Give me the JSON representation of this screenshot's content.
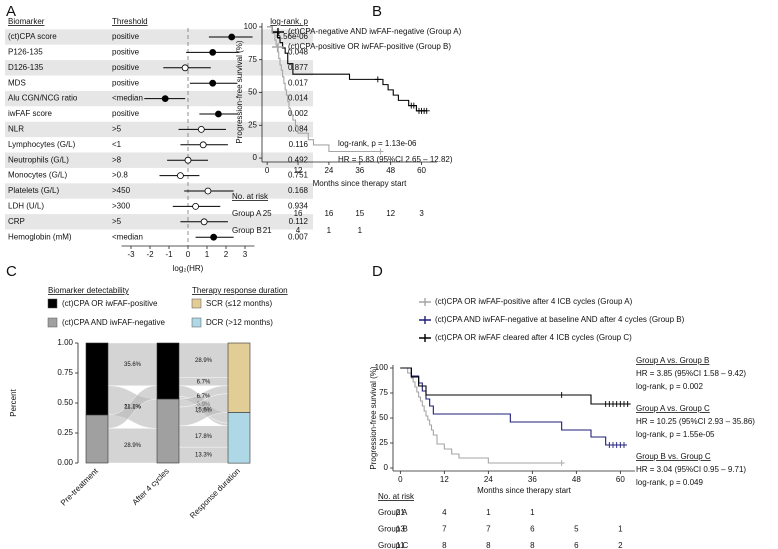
{
  "chart_data": [
    {
      "type": "forest",
      "panel": "A",
      "columns": [
        "Biomarker",
        "Threshold",
        "log-rank, p"
      ],
      "categories": [
        "(ct)CPA score",
        "P126-135",
        "D126-135",
        "MDS",
        "Alu CGN/NCG ratio",
        "iwFAF score",
        "NLR",
        "Lymphocytes (G/L)",
        "Neutrophils (G/L)",
        "Monocytes (G/L)",
        "Platelets (G/L)",
        "LDH (U/L)",
        "CRP",
        "Hemoglobin (mM)"
      ],
      "thresholds": [
        "positive",
        "positive",
        "positive",
        "positive",
        "<median",
        "positive",
        ">5",
        "<1",
        ">8",
        ">0.8",
        ">450",
        ">300",
        ">5",
        "<median"
      ],
      "p_values": [
        "6.56e-06",
        "0.048",
        "0.877",
        "0.017",
        "0.014",
        "0.002",
        "0.084",
        "0.116",
        "0.492",
        "0.751",
        "0.168",
        "0.934",
        "0.112",
        "0.007"
      ],
      "values": [
        2.3,
        1.3,
        -0.15,
        1.3,
        -1.2,
        1.6,
        0.7,
        0.8,
        0,
        -0.4,
        1.05,
        0.4,
        0.85,
        1.35
      ],
      "ci_low": [
        1.1,
        -0.1,
        -1.3,
        0.1,
        -2.3,
        0.6,
        -0.5,
        -0.4,
        -1.1,
        -1.5,
        -0.2,
        -0.8,
        -0.4,
        0.4
      ],
      "ci_high": [
        3.4,
        2.7,
        1.2,
        2.6,
        -0.15,
        2.6,
        2.0,
        2.1,
        1.05,
        0.6,
        2.4,
        1.7,
        2.1,
        2.4
      ],
      "filled": [
        true,
        true,
        false,
        true,
        true,
        true,
        false,
        false,
        false,
        false,
        false,
        false,
        false,
        true
      ],
      "xlim": [
        -3.5,
        3.5
      ],
      "xticks": [
        -3,
        -2,
        -1,
        0,
        1,
        2,
        3
      ],
      "xlabel": "log₂(HR)",
      "color": "#000000",
      "stripe_color": "#e6e6e6"
    },
    {
      "type": "survival",
      "panel": "B",
      "ylabel": "Progression-free survival (%)",
      "xlabel": "Months since therapy start",
      "xlim": [
        -2,
        66
      ],
      "ylim": [
        -3,
        103
      ],
      "xticks": [
        0,
        12,
        24,
        36,
        48,
        60
      ],
      "yticks": [
        0,
        25,
        50,
        75,
        100
      ],
      "series": [
        {
          "name": "(ct)CPA-negative AND iwFAF-negative (Group A)",
          "color": "#000000",
          "x": [
            0,
            2,
            4,
            5,
            6,
            7,
            8,
            10,
            32,
            45,
            47,
            49,
            51,
            55,
            58
          ],
          "values": [
            100,
            96,
            92,
            88,
            84,
            80,
            72,
            64,
            60,
            56,
            52,
            48,
            44,
            40,
            36
          ],
          "censored_x": [
            43,
            56,
            57,
            59,
            60,
            61,
            62
          ],
          "censored_values": [
            60,
            40,
            40,
            36,
            36,
            36,
            36
          ]
        },
        {
          "name": "(ct)CPA-positive OR iwFAF-positive (Group B)",
          "color": "#a6a6a6",
          "x": [
            0,
            2,
            3,
            3.5,
            4,
            4.5,
            5,
            5.5,
            6,
            6.5,
            7,
            7.5,
            8,
            8.5,
            9,
            10,
            11,
            12,
            16,
            18,
            24
          ],
          "values": [
            100,
            95,
            90,
            86,
            81,
            76,
            71,
            67,
            62,
            57,
            52,
            48,
            43,
            38,
            33,
            29,
            24,
            19,
            14,
            10,
            5
          ],
          "censored_x": [
            44
          ],
          "censored_values": [
            5
          ]
        }
      ],
      "annotations": [
        [
          "log-rank, p = 1.13e-06",
          "HR = 5.83 (95%CI 2.65 – 12.82)"
        ]
      ],
      "annotation_heading_underline": false,
      "risk_table": {
        "title": "No. at risk",
        "rows": [
          {
            "name": "Group A",
            "values": [
              25,
              16,
              16,
              15,
              12,
              3
            ]
          },
          {
            "name": "Group B",
            "values": [
              21,
              4,
              1,
              1
            ]
          }
        ]
      }
    },
    {
      "type": "alluvial",
      "panel": "C",
      "ylabel": "Percent",
      "ylim": [
        0,
        1
      ],
      "yticks": [
        {
          "value": 0,
          "label": "0.00"
        },
        {
          "value": 0.25,
          "label": "0.25"
        },
        {
          "value": 0.5,
          "label": "0.50"
        },
        {
          "value": 0.75,
          "label": "0.75"
        },
        {
          "value": 1,
          "label": "1.00"
        }
      ],
      "axes": [
        "Pre-treatment",
        "After 4 cycles",
        "Response duration"
      ],
      "legends": [
        {
          "title": "Biomarker detectability",
          "items": [
            {
              "name": "(ct)CPA OR iwFAF-positive",
              "color": "#000000"
            },
            {
              "name": "(ct)CPA AND iwFAF-negative",
              "color": "#a0a0a0"
            }
          ]
        },
        {
          "title": "Therapy response duration",
          "items": [
            {
              "name": "SCR (≤12 months)",
              "color": "#e3cd96"
            },
            {
              "name": "DCR (>12 months)",
              "color": "#aed8e6"
            }
          ]
        }
      ],
      "flow_color": "#b8b8b8",
      "flows": [
        [
          [
            [
              0.356
            ],
            [
              0.244
            ]
          ],
          [
            [
              0.111
            ],
            [
              0.289
            ]
          ]
        ],
        [
          [
            [
              0.289,
              0.067
            ],
            [
              0.089,
              0.022
            ]
          ],
          [
            [
              0.067,
              0.156
            ],
            [
              0.178,
              0.133
            ]
          ]
        ]
      ],
      "value_labels": [
        [
          [
            [
              "35.6%"
            ],
            [
              "24.4%"
            ]
          ],
          [
            [
              "11.1%"
            ],
            [
              "28.9%"
            ]
          ]
        ],
        [
          [
            [
              "28.9%",
              "6.7%"
            ],
            [
              "8.9%",
              "2.2%"
            ]
          ],
          [
            [
              "6.7%",
              "15.6%"
            ],
            [
              "17.8%",
              "13.3%"
            ]
          ]
        ]
      ]
    },
    {
      "type": "survival",
      "panel": "D",
      "ylabel": "Progression-free survival (%)",
      "xlabel": "Months since therapy start",
      "xlim": [
        -2,
        64
      ],
      "ylim": [
        -3,
        103
      ],
      "xticks": [
        0,
        12,
        24,
        36,
        48,
        60
      ],
      "yticks": [
        0,
        25,
        50,
        75,
        100
      ],
      "series": [
        {
          "name": "(ct)CPA OR iwFAF-positive after 4 ICB cycles (Group A)",
          "color": "#a6a6a6",
          "x": [
            0,
            2,
            3,
            3.5,
            4,
            4.5,
            5,
            5.5,
            6,
            6.5,
            7,
            7.5,
            8,
            8.5,
            9,
            10,
            12,
            14,
            16,
            24
          ],
          "values": [
            100,
            95,
            90,
            86,
            81,
            76,
            71,
            67,
            62,
            57,
            52,
            48,
            43,
            38,
            33,
            24,
            19,
            14,
            10,
            5
          ],
          "censored_x": [
            44
          ],
          "censored_values": [
            5
          ]
        },
        {
          "name": "(ct)CPA AND iwFAF-negative at baseline AND after 4 cycles (Group B)",
          "color": "#1f1f7a",
          "x": [
            0,
            3,
            5,
            6,
            7,
            8,
            9,
            30,
            44,
            52,
            56
          ],
          "values": [
            100,
            92,
            85,
            77,
            69,
            62,
            54,
            46,
            38,
            31,
            23
          ],
          "censored_x": [
            57,
            58,
            59,
            60,
            61
          ],
          "censored_values": [
            23,
            23,
            23,
            23,
            23
          ]
        },
        {
          "name": "(ct)CPA OR iwFAF cleared after 4 ICB cycles (Group C)",
          "color": "#000000",
          "x": [
            0,
            3,
            5,
            7,
            52
          ],
          "values": [
            100,
            91,
            82,
            73,
            64
          ],
          "censored_x": [
            44,
            56,
            57,
            58,
            59,
            60,
            61,
            62
          ],
          "censored_values": [
            73,
            64,
            64,
            64,
            64,
            64,
            64,
            64
          ]
        }
      ],
      "annotations": [
        [
          "Group A vs. Group B",
          "HR = 3.85 (95%CI 1.58 – 9.42)",
          "log-rank, p = 0.002"
        ],
        [
          "Group A vs. Group C",
          "HR = 10.25 (95%CI 2.93 – 35.86)",
          "log-rank, p = 1.55e-05"
        ],
        [
          "Group B vs. Group C",
          "HR = 3.04 (95%CI 0.95 – 9.71)",
          "log-rank, p = 0.049"
        ]
      ],
      "annotation_heading_underline": true,
      "risk_table": {
        "title": "No. at risk",
        "rows": [
          {
            "name": "Group A",
            "values": [
              21,
              4,
              1,
              1
            ]
          },
          {
            "name": "Group B",
            "values": [
              13,
              7,
              7,
              6,
              5,
              1
            ]
          },
          {
            "name": "Group C",
            "values": [
              11,
              8,
              8,
              8,
              6,
              2
            ]
          }
        ]
      }
    }
  ]
}
